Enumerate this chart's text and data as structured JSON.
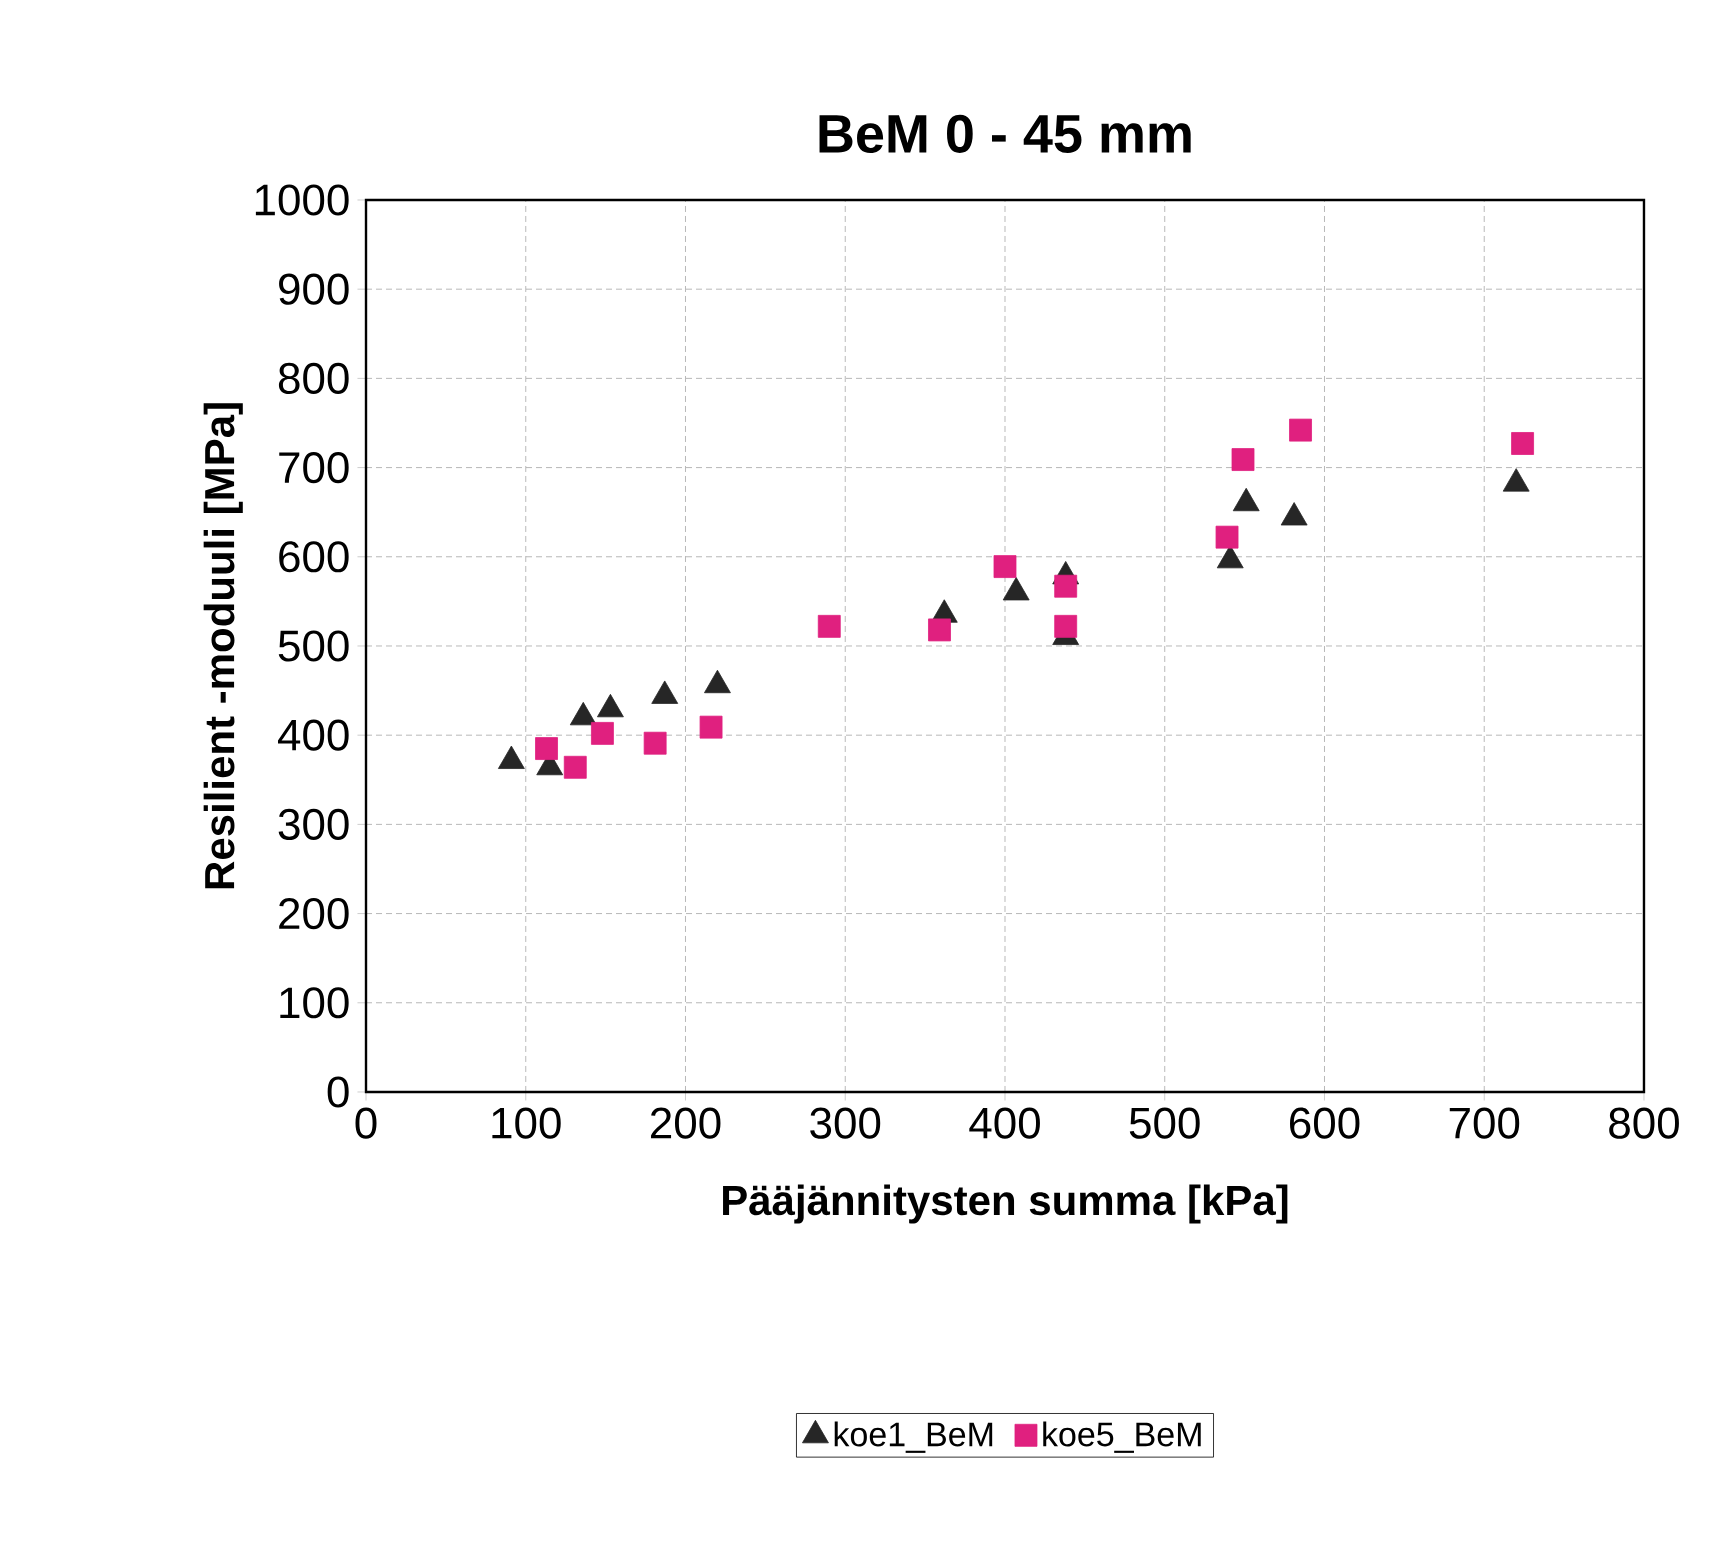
{
  "chart_data": {
    "type": "scatter",
    "title": "BeM 0 - 45 mm",
    "xlabel": "Pääjännitysten summa [kPa]",
    "ylabel": "Resilient -moduuli [MPa]",
    "xlim": [
      0,
      800
    ],
    "xticks": [
      0,
      100,
      200,
      300,
      400,
      500,
      600,
      700,
      800
    ],
    "ylim": [
      0,
      1000
    ],
    "yticks": [
      0,
      100,
      200,
      300,
      400,
      500,
      600,
      700,
      800,
      900,
      1000
    ],
    "grid": true,
    "legend": "bottom",
    "series": [
      {
        "name": "koe1_BeM",
        "color": "#262626",
        "marker": "triangle",
        "x": [
          91,
          115,
          136,
          153,
          187,
          220,
          290,
          362,
          407,
          438,
          438,
          541,
          551,
          581,
          720
        ],
        "values": [
          371,
          364,
          420,
          429,
          444,
          456,
          null,
          535,
          560,
          578,
          510,
          596,
          660,
          644,
          682
        ]
      },
      {
        "name": "koe5_BeM",
        "color": "#e0207f",
        "marker": "square",
        "x": [
          113,
          131,
          148,
          181,
          216,
          290,
          359,
          400,
          438,
          438,
          539,
          549,
          585,
          724
        ],
        "values": [
          385,
          364,
          402,
          391,
          409,
          522,
          518,
          589,
          567,
          522,
          622,
          709,
          742,
          727
        ]
      }
    ]
  }
}
